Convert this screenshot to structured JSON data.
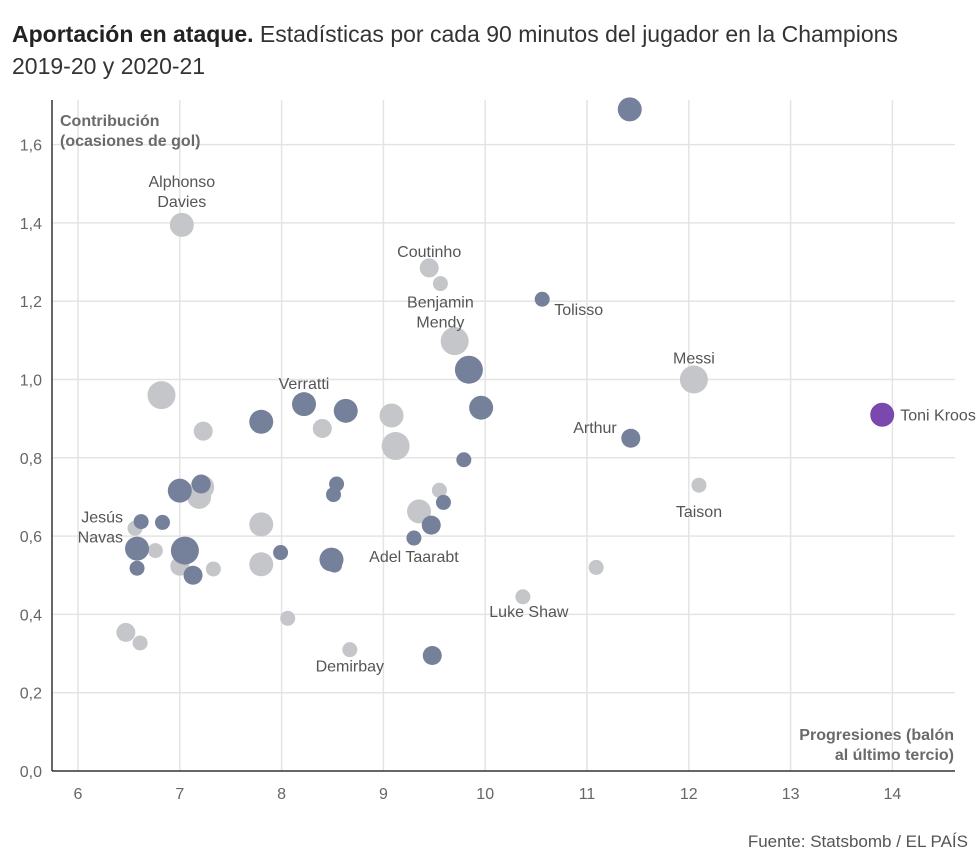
{
  "header": {
    "title_bold": "Aportación en ataque.",
    "title_rest": " Estadísticas por cada 90 minutos del jugador en la Champions 2019-20 y 2020-21"
  },
  "source": "Fuente: Statsbomb / EL PAÍS",
  "colors": {
    "gray": "#c4c6ca",
    "slate": "#75809a",
    "purple": "#7b48ad",
    "grid": "#e4e4e4",
    "axis": "#333333"
  },
  "chart_data": {
    "type": "scatter",
    "xlabel": [
      "Progresiones (balón",
      "al último tercio)"
    ],
    "ylabel": [
      "Contribución",
      "(ocasiones de gol)"
    ],
    "xlim": [
      5.75,
      14.65
    ],
    "ylim": [
      0,
      1.7
    ],
    "x_ticks": [
      6,
      7,
      8,
      9,
      10,
      11,
      12,
      13,
      14
    ],
    "x_tick_labels": [
      "6",
      "7",
      "8",
      "9",
      "10",
      "11",
      "12",
      "13",
      "14"
    ],
    "y_ticks": [
      0,
      0.2,
      0.4,
      0.6,
      0.8,
      1.0,
      1.2,
      1.4,
      1.6
    ],
    "y_tick_labels": [
      "0,0",
      "0,2",
      "0,4",
      "0,6",
      "0,8",
      "1,0",
      "1,2",
      "1,4",
      "1,6"
    ],
    "grid": "vertical-and-horizontal",
    "points": [
      {
        "x": 11.42,
        "y": 1.69,
        "size": "m",
        "color": "slate"
      },
      {
        "x": 7.02,
        "y": 1.395,
        "size": "m",
        "color": "gray",
        "label": [
          "Alphonso",
          "Davies"
        ],
        "label_anchor": "middle",
        "label_dx": 0,
        "label_dy": -38
      },
      {
        "x": 9.45,
        "y": 1.285,
        "size": "s",
        "color": "gray",
        "label": [
          "Coutinho"
        ],
        "label_anchor": "middle",
        "label_dx": 0,
        "label_dy": -11
      },
      {
        "x": 9.56,
        "y": 1.245,
        "size": "xs",
        "color": "gray",
        "label": [
          "Benjamin",
          "Mendy"
        ],
        "label_anchor": "middle",
        "label_dx": 0,
        "label_dy": 14
      },
      {
        "x": 10.56,
        "y": 1.205,
        "size": "xs",
        "color": "slate",
        "label": [
          "Tolisso"
        ],
        "label_anchor": "start",
        "label_dx": 12,
        "label_dy": 6
      },
      {
        "x": 9.7,
        "y": 1.098,
        "size": "l",
        "color": "gray"
      },
      {
        "x": 9.84,
        "y": 1.025,
        "size": "l",
        "color": "slate"
      },
      {
        "x": 12.05,
        "y": 1.0,
        "size": "l",
        "color": "gray",
        "label": [
          "Messi"
        ],
        "label_anchor": "middle",
        "label_dx": 0,
        "label_dy": -16
      },
      {
        "x": 6.82,
        "y": 0.96,
        "size": "l",
        "color": "gray"
      },
      {
        "x": 8.22,
        "y": 0.937,
        "size": "m",
        "color": "slate",
        "label": [
          "Verratti"
        ],
        "label_anchor": "middle",
        "label_dx": 0,
        "label_dy": -15
      },
      {
        "x": 9.96,
        "y": 0.928,
        "size": "m",
        "color": "slate"
      },
      {
        "x": 8.63,
        "y": 0.92,
        "size": "m",
        "color": "slate"
      },
      {
        "x": 13.9,
        "y": 0.91,
        "size": "m",
        "color": "purple",
        "label": [
          "Toni Kroos"
        ],
        "label_anchor": "start",
        "label_dx": 18,
        "label_dy": 0
      },
      {
        "x": 9.08,
        "y": 0.908,
        "size": "m",
        "color": "gray"
      },
      {
        "x": 7.8,
        "y": 0.892,
        "size": "m",
        "color": "slate"
      },
      {
        "x": 8.4,
        "y": 0.875,
        "size": "s",
        "color": "gray"
      },
      {
        "x": 7.23,
        "y": 0.868,
        "size": "s",
        "color": "gray"
      },
      {
        "x": 11.43,
        "y": 0.85,
        "size": "s",
        "color": "slate",
        "label": [
          "Arthur"
        ],
        "label_anchor": "end",
        "label_dx": -14,
        "label_dy": -5
      },
      {
        "x": 9.12,
        "y": 0.83,
        "size": "l",
        "color": "gray"
      },
      {
        "x": 9.79,
        "y": 0.795,
        "size": "xs",
        "color": "slate"
      },
      {
        "x": 12.1,
        "y": 0.73,
        "size": "xs",
        "color": "gray",
        "label": [
          "Taison"
        ],
        "label_anchor": "middle",
        "label_dx": 0,
        "label_dy": 22
      },
      {
        "x": 8.54,
        "y": 0.733,
        "size": "xs",
        "color": "slate"
      },
      {
        "x": 7.22,
        "y": 0.725,
        "size": "m",
        "color": "gray"
      },
      {
        "x": 7.21,
        "y": 0.733,
        "size": "s",
        "color": "slate"
      },
      {
        "x": 7.0,
        "y": 0.716,
        "size": "m",
        "color": "slate"
      },
      {
        "x": 9.55,
        "y": 0.717,
        "size": "xs",
        "color": "gray"
      },
      {
        "x": 7.19,
        "y": 0.7,
        "size": "m",
        "color": "gray"
      },
      {
        "x": 8.51,
        "y": 0.706,
        "size": "xs",
        "color": "slate"
      },
      {
        "x": 9.59,
        "y": 0.686,
        "size": "xs",
        "color": "slate"
      },
      {
        "x": 9.35,
        "y": 0.663,
        "size": "m",
        "color": "gray"
      },
      {
        "x": 6.62,
        "y": 0.637,
        "size": "xs",
        "color": "slate"
      },
      {
        "x": 6.83,
        "y": 0.635,
        "size": "xs",
        "color": "slate"
      },
      {
        "x": 7.8,
        "y": 0.63,
        "size": "m",
        "color": "gray"
      },
      {
        "x": 9.47,
        "y": 0.628,
        "size": "s",
        "color": "slate"
      },
      {
        "x": 6.56,
        "y": 0.62,
        "size": "xs",
        "color": "gray",
        "label": [
          "Jesús",
          "Navas"
        ],
        "label_anchor": "end",
        "label_dx": -12,
        "label_dy": -6
      },
      {
        "x": 9.3,
        "y": 0.595,
        "size": "xs",
        "color": "slate",
        "label": [
          "Adel Taarabt"
        ],
        "label_anchor": "middle",
        "label_dx": 0,
        "label_dy": 14
      },
      {
        "x": 6.58,
        "y": 0.568,
        "size": "m",
        "color": "slate"
      },
      {
        "x": 7.05,
        "y": 0.563,
        "size": "l",
        "color": "slate"
      },
      {
        "x": 6.76,
        "y": 0.563,
        "size": "xs",
        "color": "gray"
      },
      {
        "x": 7.99,
        "y": 0.558,
        "size": "xs",
        "color": "slate"
      },
      {
        "x": 8.49,
        "y": 0.54,
        "size": "m",
        "color": "slate"
      },
      {
        "x": 7.8,
        "y": 0.528,
        "size": "m",
        "color": "gray"
      },
      {
        "x": 8.52,
        "y": 0.526,
        "size": "xs",
        "color": "slate"
      },
      {
        "x": 7.0,
        "y": 0.523,
        "size": "s",
        "color": "gray"
      },
      {
        "x": 11.09,
        "y": 0.52,
        "size": "xs",
        "color": "gray"
      },
      {
        "x": 6.58,
        "y": 0.518,
        "size": "xs",
        "color": "slate"
      },
      {
        "x": 7.33,
        "y": 0.516,
        "size": "xs",
        "color": "gray"
      },
      {
        "x": 7.13,
        "y": 0.5,
        "size": "s",
        "color": "slate"
      },
      {
        "x": 10.37,
        "y": 0.445,
        "size": "xs",
        "color": "gray",
        "label": [
          "Luke Shaw"
        ],
        "label_anchor": "middle",
        "label_dx": 6,
        "label_dy": 10
      },
      {
        "x": 8.06,
        "y": 0.39,
        "size": "xs",
        "color": "gray"
      },
      {
        "x": 6.47,
        "y": 0.354,
        "size": "s",
        "color": "gray"
      },
      {
        "x": 6.61,
        "y": 0.327,
        "size": "xs",
        "color": "gray"
      },
      {
        "x": 8.67,
        "y": 0.31,
        "size": "xs",
        "color": "gray",
        "label": [
          "Demirbay"
        ],
        "label_anchor": "middle",
        "label_dx": 0,
        "label_dy": 12
      },
      {
        "x": 9.48,
        "y": 0.295,
        "size": "s",
        "color": "slate"
      }
    ]
  }
}
